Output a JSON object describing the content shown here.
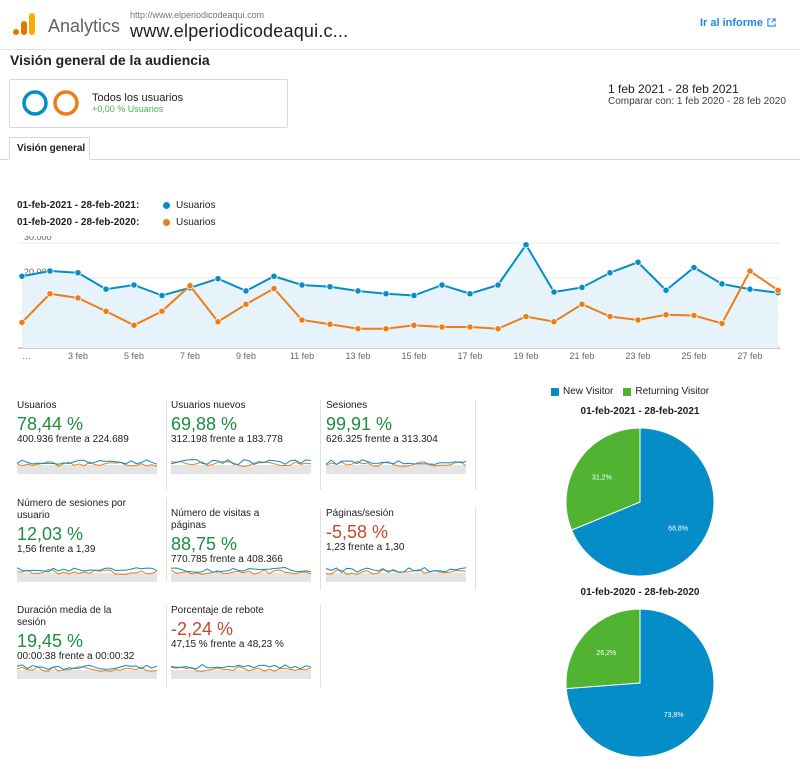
{
  "header": {
    "app_name": "Analytics",
    "site_url": "http://www.elperiodicodeaqui.com",
    "site_name": "www.elperiodicodeaqui.c...",
    "report_link": "Ir al informe"
  },
  "page_title": "Visión general de la audiencia",
  "segment": {
    "name": "Todos los usuarios",
    "sub": "+0,00 % Usuarios"
  },
  "date": {
    "range": "1 feb 2021 - 28 feb 2021",
    "compare": "Comparar con: 1 feb 2020 - 28 feb 2020"
  },
  "tab": "Visión general",
  "colors": {
    "blue": "#058dc7",
    "orange": "#ed7e17",
    "green": "#50b432",
    "positive": "#1e8e3e",
    "negative": "#c5492c"
  },
  "legend": [
    {
      "range": "01-feb-2021 - 28-feb-2021:",
      "label": "Usuarios"
    },
    {
      "range": "01-feb-2020 - 28-feb-2020:",
      "label": "Usuarios"
    }
  ],
  "chart_data": [
    {
      "type": "line",
      "x": [
        "…",
        "2 feb",
        "3 feb",
        "4 feb",
        "5 feb",
        "6 feb",
        "7 feb",
        "8 feb",
        "9 feb",
        "10 feb",
        "11 feb",
        "12 feb",
        "13 feb",
        "14 feb",
        "15 feb",
        "16 feb",
        "17 feb",
        "18 feb",
        "19 feb",
        "20 feb",
        "21 feb",
        "22 feb",
        "23 feb",
        "24 feb",
        "25 feb",
        "26 feb",
        "27 feb",
        "28 feb"
      ],
      "xticks": [
        "…",
        "3 feb",
        "5 feb",
        "7 feb",
        "9 feb",
        "11 feb",
        "13 feb",
        "15 feb",
        "17 feb",
        "19 feb",
        "21 feb",
        "23 feb",
        "25 feb",
        "27 feb"
      ],
      "yticks": [
        "10.000",
        "20.000",
        "30.000"
      ],
      "ylim": [
        0,
        32000
      ],
      "series": [
        {
          "name": "Usuarios",
          "color": "#058dc7",
          "values": [
            20500,
            22000,
            21500,
            16800,
            18000,
            15000,
            17200,
            19800,
            16300,
            20500,
            18000,
            17500,
            16300,
            15500,
            15000,
            18000,
            15500,
            18000,
            29500,
            16000,
            17300,
            21500,
            24500,
            16500,
            23000,
            18300,
            16800,
            15800
          ]
        },
        {
          "name": "Usuarios",
          "color": "#ed7e17",
          "values": [
            7300,
            15500,
            14300,
            10500,
            6500,
            10500,
            17800,
            7500,
            12500,
            17000,
            8000,
            6800,
            5500,
            5500,
            6500,
            6000,
            6000,
            5500,
            9000,
            7500,
            12500,
            9000,
            8000,
            9500,
            9300,
            7000,
            22000,
            16500
          ]
        }
      ]
    },
    {
      "type": "pie",
      "title": "01-feb-2021 - 28-feb-2021",
      "labels": [
        "New Visitor",
        "Returning Visitor"
      ],
      "values": [
        68.8,
        31.2
      ],
      "value_labels": [
        "68,8%",
        "31,2%"
      ]
    },
    {
      "type": "pie",
      "title": "01-feb-2020 - 28-feb-2020",
      "labels": [
        "New Visitor",
        "Returning Visitor"
      ],
      "values": [
        73.8,
        26.2
      ],
      "value_labels": [
        "73,8%",
        "26,2%"
      ]
    }
  ],
  "metrics": [
    {
      "label": "Usuarios",
      "value": "78,44 %",
      "compare": "400.936 frente a 224.689",
      "trend": "pos"
    },
    {
      "label": "Usuarios nuevos",
      "value": "69,88 %",
      "compare": "312.198 frente a 183.778",
      "trend": "pos"
    },
    {
      "label": "Sesiones",
      "value": "99,91 %",
      "compare": "626.325 frente a 313.304",
      "trend": "pos"
    },
    {
      "label": "Número de sesiones por usuario",
      "value": "12,03 %",
      "compare": "1,56 frente a 1,39",
      "trend": "pos"
    },
    {
      "label": "Número de visitas a páginas",
      "value": "88,75 %",
      "compare": "770.785 frente a 408.366",
      "trend": "pos"
    },
    {
      "label": "Páginas/sesión",
      "value": "-5,58 %",
      "compare": "1,23 frente a 1,30",
      "trend": "neg"
    },
    {
      "label": "Duración media de la sesión",
      "value": "19,45 %",
      "compare": "00:00:38 frente a 00:00:32",
      "trend": "pos"
    },
    {
      "label": "Porcentaje de rebote",
      "value": "-2,24 %",
      "compare": "47,15 % frente a 48,23 %",
      "trend": "neg"
    }
  ]
}
